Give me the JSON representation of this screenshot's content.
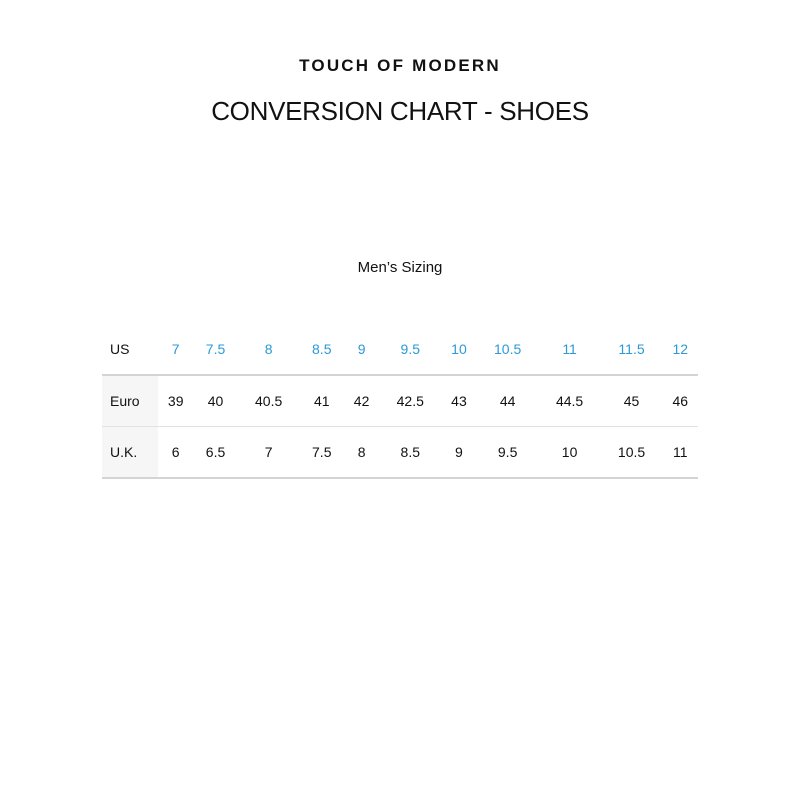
{
  "brand": "TOUCH OF MODERN",
  "title": "CONVERSION CHART - SHOES",
  "subtitle": "Men’s Sizing",
  "colors": {
    "accent": "#2a9ad8",
    "text": "#111111",
    "label_bg": "#f6f6f6"
  },
  "rows": [
    {
      "label": "US",
      "values": [
        "7",
        "7.5",
        "8",
        "8.5",
        "9",
        "9.5",
        "10",
        "10.5",
        "11",
        "11.5",
        "12"
      ]
    },
    {
      "label": "Euro",
      "values": [
        "39",
        "40",
        "40.5",
        "41",
        "42",
        "42.5",
        "43",
        "44",
        "44.5",
        "45",
        "46"
      ]
    },
    {
      "label": "U.K.",
      "values": [
        "6",
        "6.5",
        "7",
        "7.5",
        "8",
        "8.5",
        "9",
        "9.5",
        "10",
        "10.5",
        "11"
      ]
    }
  ]
}
